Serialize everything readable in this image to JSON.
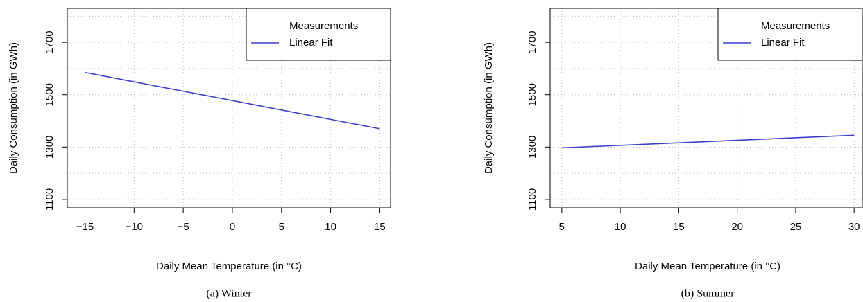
{
  "chart_data": [
    {
      "type": "line",
      "caption": "(a)  Winter",
      "xlabel": "Daily Mean Temperature (in °C)",
      "ylabel": "Daily Consumption (in GWh)",
      "xlim": [
        -16.8,
        16.1
      ],
      "ylim": [
        1068,
        1830
      ],
      "xticks": [
        {
          "value": -15,
          "label": "−15"
        },
        {
          "value": -10,
          "label": "−10"
        },
        {
          "value": -5,
          "label": "−5"
        },
        0,
        5,
        10,
        15
      ],
      "yticks": [
        1100,
        1300,
        1500,
        1700
      ],
      "ygrid": [
        1100,
        1200,
        1300,
        1400,
        1500,
        1600,
        1700,
        1800
      ],
      "grid": true,
      "legend": "upper right",
      "series": [
        {
          "name": "Measurements",
          "color": "#ffffff",
          "x": [],
          "values": []
        },
        {
          "name": "Linear Fit",
          "color": "#3a3fcc",
          "x": [
            -15,
            15
          ],
          "values": [
            1585,
            1370
          ]
        }
      ]
    },
    {
      "type": "line",
      "caption": "(b)  Summer",
      "xlabel": "Daily Mean Temperature (in °C)",
      "ylabel": "Daily Consumption (in GWh)",
      "xlim": [
        4.0,
        30.7
      ],
      "ylim": [
        1068,
        1830
      ],
      "xticks": [
        5,
        10,
        15,
        20,
        25,
        30
      ],
      "yticks": [
        1100,
        1300,
        1500,
        1700
      ],
      "ygrid": [
        1100,
        1200,
        1300,
        1400,
        1500,
        1600,
        1700,
        1800
      ],
      "grid": true,
      "legend": "upper right",
      "series": [
        {
          "name": "Measurements",
          "color": "#ffffff",
          "x": [],
          "values": []
        },
        {
          "name": "Linear Fit",
          "color": "#3a3fcc",
          "x": [
            5,
            30
          ],
          "values": [
            1297,
            1345
          ]
        }
      ]
    }
  ]
}
